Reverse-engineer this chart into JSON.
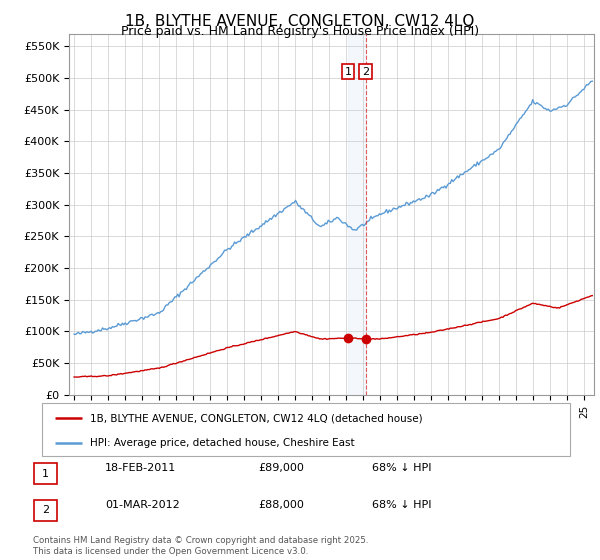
{
  "title": "1B, BLYTHE AVENUE, CONGLETON, CW12 4LQ",
  "subtitle": "Price paid vs. HM Land Registry's House Price Index (HPI)",
  "ylim": [
    0,
    570000
  ],
  "yticks": [
    0,
    50000,
    100000,
    150000,
    200000,
    250000,
    300000,
    350000,
    400000,
    450000,
    500000,
    550000
  ],
  "ytick_labels": [
    "£0",
    "£50K",
    "£100K",
    "£150K",
    "£200K",
    "£250K",
    "£300K",
    "£350K",
    "£400K",
    "£450K",
    "£500K",
    "£550K"
  ],
  "hpi_color": "#5b9bd5",
  "sale_color": "#cc0000",
  "sale_marker_color": "#cc0000",
  "background_color": "#ffffff",
  "grid_color": "#cccccc",
  "sale_dates_num": [
    2011.12,
    2012.17
  ],
  "sale_prices": [
    89000,
    88000
  ],
  "annotation_labels": [
    "1",
    "2"
  ],
  "legend_line1": "1B, BLYTHE AVENUE, CONGLETON, CW12 4LQ (detached house)",
  "legend_line2": "HPI: Average price, detached house, Cheshire East",
  "table_rows": [
    [
      "1",
      "18-FEB-2011",
      "£89,000",
      "68% ↓ HPI"
    ],
    [
      "2",
      "01-MAR-2012",
      "£88,000",
      "68% ↓ HPI"
    ]
  ],
  "footnote": "Contains HM Land Registry data © Crown copyright and database right 2025.\nThis data is licensed under the Open Government Licence v3.0.",
  "title_fontsize": 11,
  "subtitle_fontsize": 9
}
